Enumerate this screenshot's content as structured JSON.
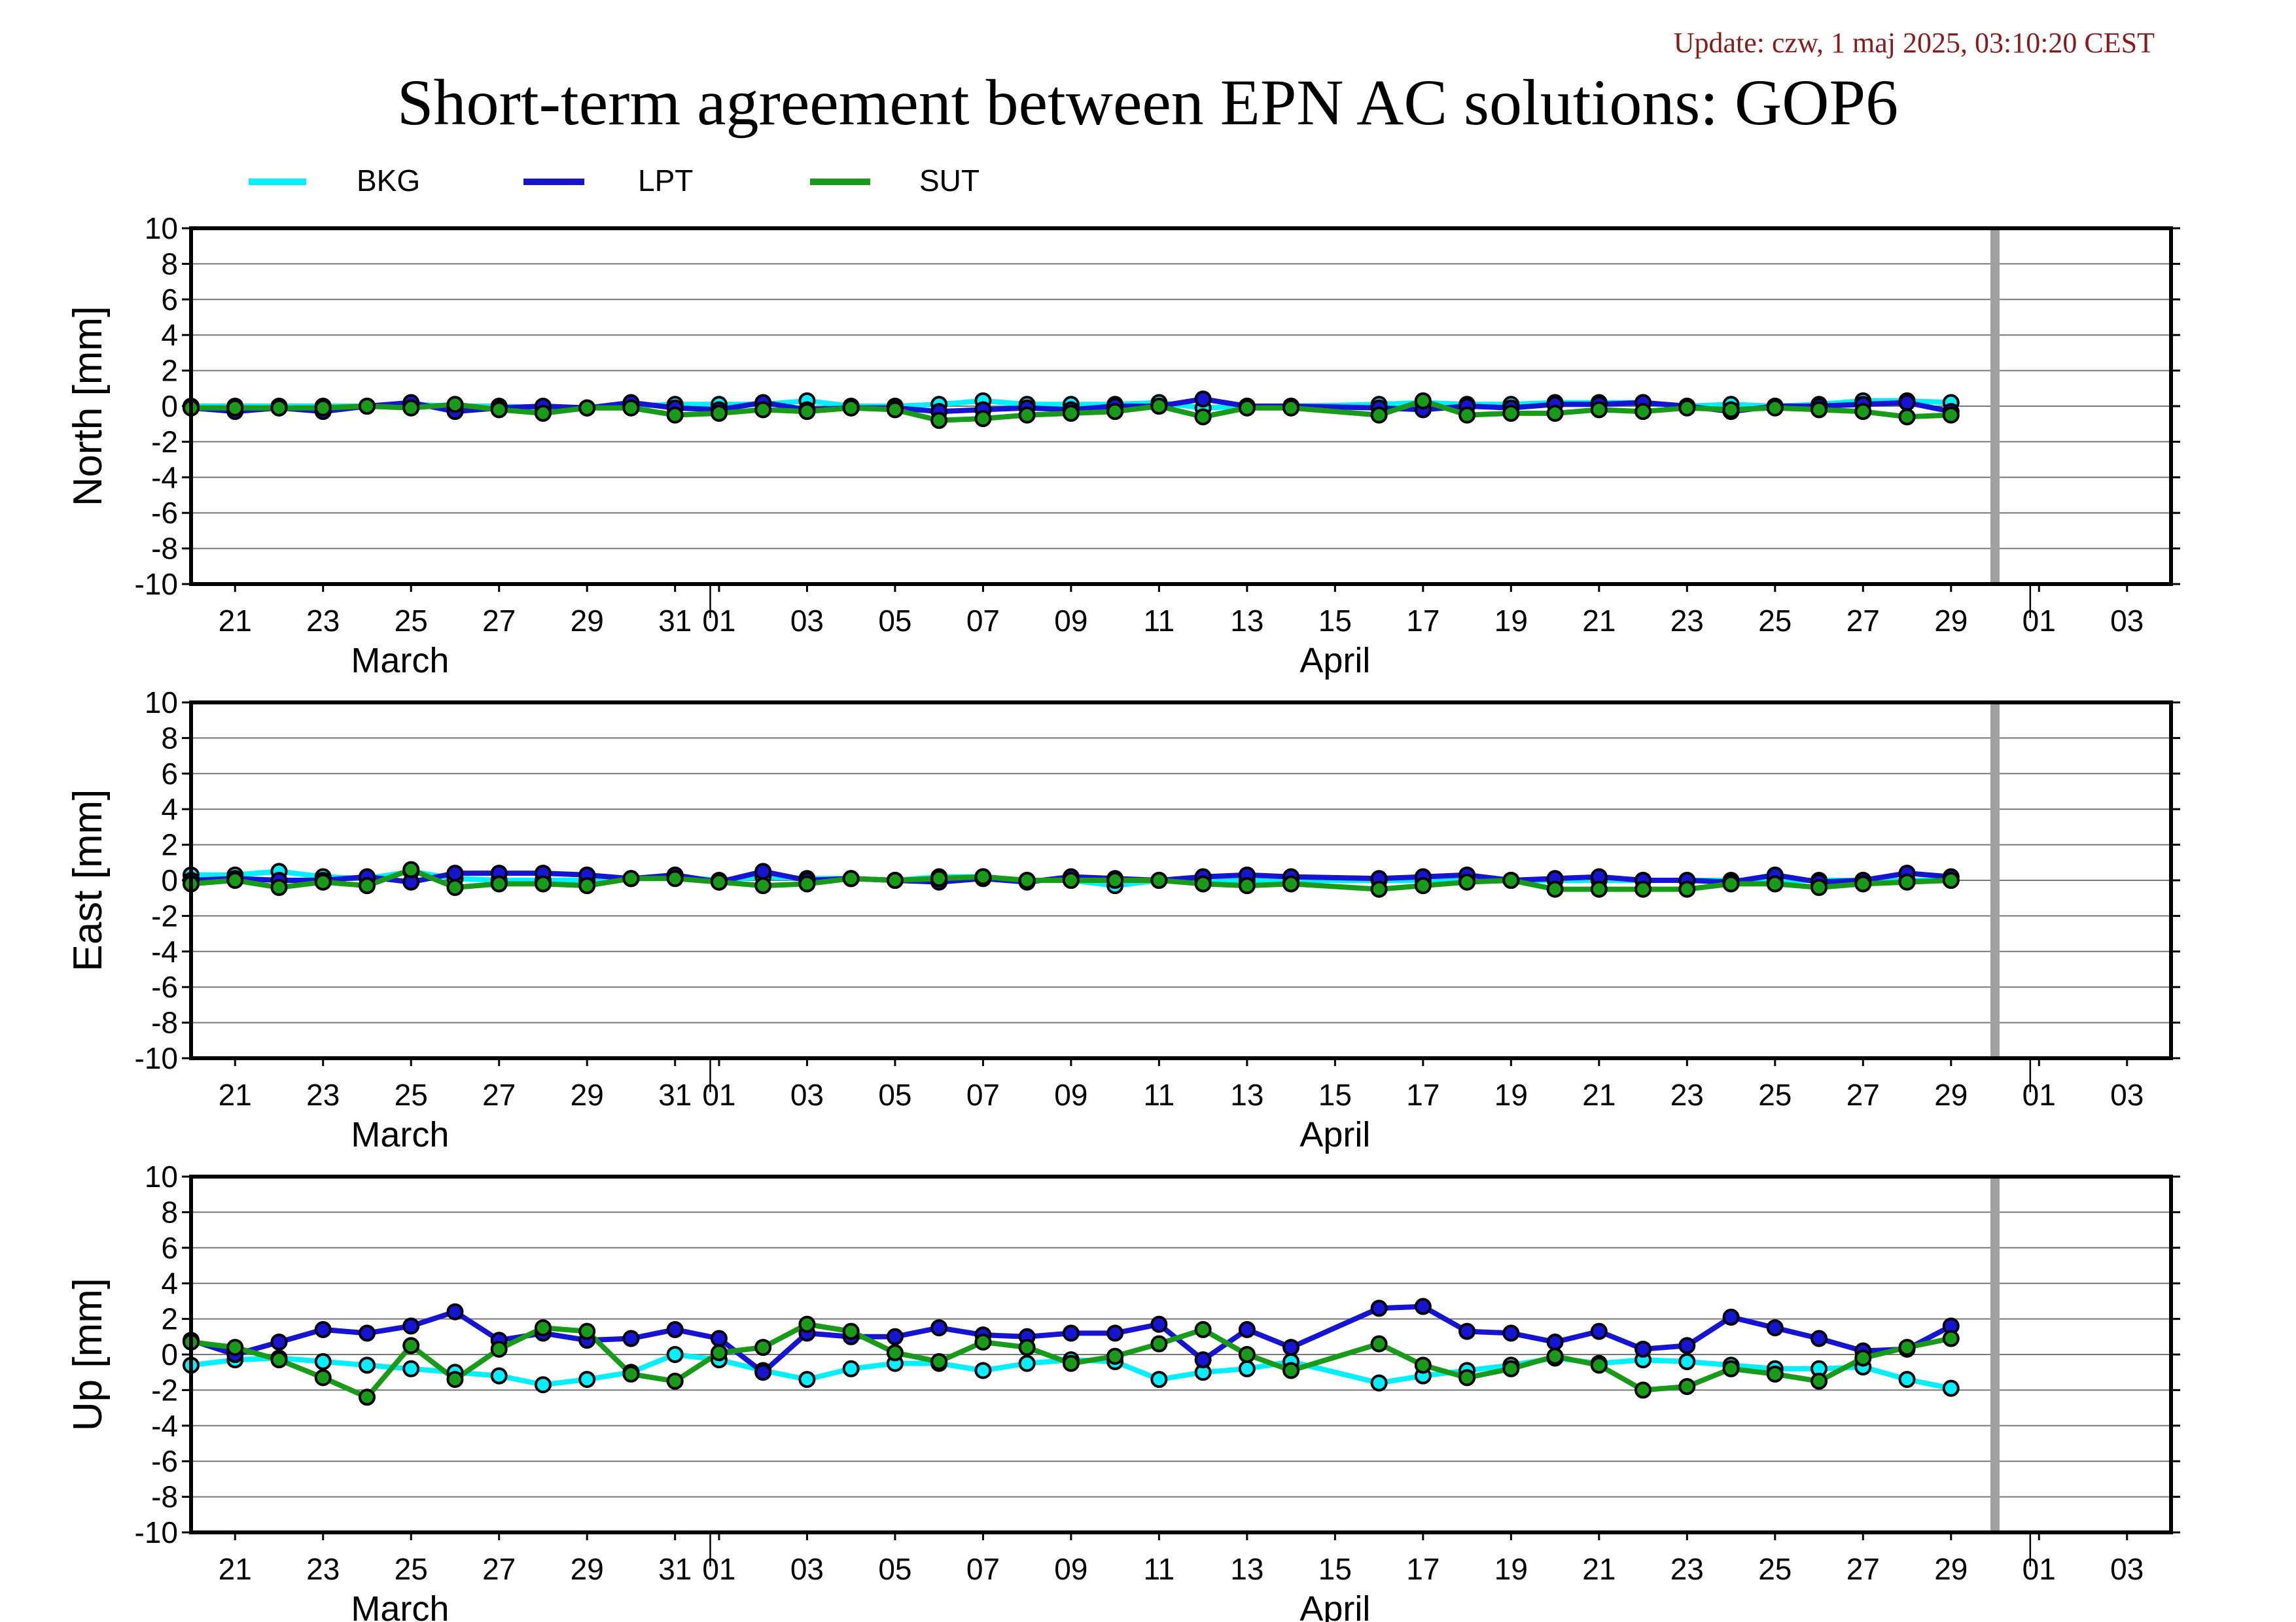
{
  "header": {
    "update": "Update: czw, 1 maj 2025, 03:10:20 CEST",
    "title": "Short-term agreement between EPN AC solutions: GOP6"
  },
  "chart_data": {
    "type": "line",
    "title": "Short-term agreement between EPN AC solutions: GOP6",
    "legend_position": "top-left",
    "grid": "horizontal",
    "x": [
      "03-20",
      "03-21",
      "03-22",
      "03-23",
      "03-24",
      "03-25",
      "03-26",
      "03-27",
      "03-28",
      "03-29",
      "03-30",
      "03-31",
      "04-01",
      "04-02",
      "04-03",
      "04-04",
      "04-05",
      "04-06",
      "04-07",
      "04-08",
      "04-09",
      "04-10",
      "04-11",
      "04-12",
      "04-13",
      "04-14",
      "04-15",
      "04-16",
      "04-17",
      "04-18",
      "04-19",
      "04-20",
      "04-21",
      "04-22",
      "04-23",
      "04-24",
      "04-25",
      "04-26",
      "04-27",
      "04-28",
      "04-29"
    ],
    "xlim": [
      "03-20",
      "05-04"
    ],
    "x_tick_labels": [
      "21",
      "23",
      "25",
      "27",
      "29",
      "31",
      "01",
      "03",
      "05",
      "07",
      "09",
      "11",
      "13",
      "15",
      "17",
      "19",
      "21",
      "23",
      "25",
      "27",
      "29",
      "01",
      "03"
    ],
    "month_labels": [
      "March",
      "April"
    ],
    "current_day_marker": "04-30",
    "colors": {
      "BKG": "#00f0ff",
      "LPT": "#1414d2",
      "SUT": "#189b18"
    },
    "panels": [
      {
        "ylabel": "North [mm]",
        "ylim": [
          -10,
          10
        ],
        "yticks": [
          "10",
          "8",
          "6",
          "4",
          "2",
          "0",
          "-2",
          "-4",
          "-6",
          "-8",
          "-10"
        ],
        "series": [
          {
            "name": "BKG",
            "values": [
              0.0,
              0.0,
              0.0,
              0.0,
              0.0,
              0.1,
              0.0,
              0.0,
              -0.1,
              -0.1,
              0.0,
              0.1,
              0.1,
              0.1,
              0.3,
              0.0,
              0.0,
              0.1,
              0.3,
              0.1,
              0.1,
              0.1,
              0.2,
              -0.1,
              0.0,
              0.0,
              null,
              0.1,
              0.2,
              0.1,
              0.1,
              0.2,
              0.2,
              0.2,
              0.0,
              0.1,
              0.0,
              0.1,
              0.3,
              0.3,
              0.2
            ]
          },
          {
            "name": "LPT",
            "values": [
              -0.1,
              -0.3,
              -0.1,
              -0.3,
              0.0,
              0.2,
              -0.3,
              -0.1,
              0.0,
              -0.1,
              0.2,
              -0.1,
              -0.2,
              0.2,
              -0.2,
              -0.1,
              -0.1,
              -0.3,
              -0.2,
              -0.1,
              -0.2,
              0.0,
              0.0,
              0.4,
              0.0,
              0.0,
              null,
              -0.1,
              -0.2,
              0.0,
              -0.1,
              0.1,
              0.1,
              0.2,
              0.0,
              -0.3,
              0.0,
              0.0,
              0.1,
              0.2,
              -0.3
            ]
          },
          {
            "name": "SUT",
            "values": [
              -0.1,
              -0.1,
              -0.1,
              -0.1,
              0.0,
              -0.1,
              0.1,
              -0.2,
              -0.4,
              -0.1,
              -0.1,
              -0.5,
              -0.4,
              -0.2,
              -0.3,
              -0.1,
              -0.2,
              -0.8,
              -0.7,
              -0.5,
              -0.4,
              -0.3,
              0.0,
              -0.6,
              -0.1,
              -0.1,
              null,
              -0.5,
              0.3,
              -0.5,
              -0.4,
              -0.4,
              -0.2,
              -0.3,
              -0.1,
              -0.2,
              -0.1,
              -0.2,
              -0.3,
              -0.6,
              -0.5
            ]
          }
        ]
      },
      {
        "ylabel": "East [mm]",
        "ylim": [
          -10,
          10
        ],
        "yticks": [
          "10",
          "8",
          "6",
          "4",
          "2",
          "0",
          "-2",
          "-4",
          "-6",
          "-8",
          "-10"
        ],
        "series": [
          {
            "name": "BKG",
            "values": [
              0.3,
              0.3,
              0.5,
              0.2,
              0.1,
              0.5,
              0.1,
              0.0,
              0.0,
              0.0,
              0.1,
              0.2,
              0.0,
              0.2,
              0.1,
              0.1,
              0.0,
              0.2,
              0.2,
              0.0,
              0.0,
              -0.3,
              0.0,
              0.0,
              0.0,
              0.0,
              null,
              0.0,
              0.0,
              0.0,
              0.0,
              0.0,
              0.0,
              0.0,
              0.0,
              0.0,
              0.0,
              0.0,
              0.0,
              0.0,
              0.0
            ]
          },
          {
            "name": "LPT",
            "values": [
              0.0,
              0.1,
              0.0,
              0.0,
              0.2,
              -0.1,
              0.4,
              0.4,
              0.4,
              0.3,
              0.1,
              0.3,
              -0.1,
              0.5,
              0.0,
              0.1,
              0.0,
              -0.1,
              0.1,
              -0.1,
              0.2,
              0.1,
              0.0,
              0.2,
              0.3,
              0.2,
              null,
              0.1,
              0.2,
              0.3,
              0.0,
              0.1,
              0.2,
              0.0,
              0.0,
              -0.1,
              0.3,
              -0.1,
              0.0,
              0.4,
              0.2
            ]
          },
          {
            "name": "SUT",
            "values": [
              -0.2,
              0.0,
              -0.4,
              -0.1,
              -0.3,
              0.6,
              -0.4,
              -0.2,
              -0.2,
              -0.3,
              0.1,
              0.1,
              -0.1,
              -0.3,
              -0.2,
              0.1,
              0.0,
              0.1,
              0.2,
              0.0,
              0.0,
              0.0,
              0.0,
              -0.2,
              -0.3,
              -0.2,
              null,
              -0.5,
              -0.3,
              -0.1,
              0.0,
              -0.5,
              -0.5,
              -0.5,
              -0.5,
              -0.2,
              -0.2,
              -0.4,
              -0.2,
              -0.1,
              0.0
            ]
          }
        ]
      },
      {
        "ylabel": "Up [mm]",
        "ylim": [
          -10,
          10
        ],
        "yticks": [
          "10",
          "8",
          "6",
          "4",
          "2",
          "0",
          "-2",
          "-4",
          "-6",
          "-8",
          "-10"
        ],
        "series": [
          {
            "name": "BKG",
            "values": [
              -0.6,
              -0.3,
              -0.2,
              -0.4,
              -0.6,
              -0.8,
              -1.0,
              -1.2,
              -1.7,
              -1.4,
              -1.0,
              0.0,
              -0.3,
              -0.9,
              -1.4,
              -0.8,
              -0.5,
              -0.5,
              -0.9,
              -0.5,
              -0.3,
              -0.4,
              -1.4,
              -1.0,
              -0.8,
              -0.4,
              null,
              -1.6,
              -1.2,
              -0.9,
              -0.6,
              -0.2,
              -0.5,
              -0.3,
              -0.4,
              -0.6,
              -0.8,
              -0.8,
              -0.7,
              -1.4,
              -1.9
            ]
          },
          {
            "name": "LPT",
            "values": [
              0.8,
              0.0,
              0.7,
              1.4,
              1.2,
              1.6,
              2.4,
              0.8,
              1.2,
              0.8,
              0.9,
              1.4,
              0.9,
              -1.0,
              1.2,
              1.0,
              1.0,
              1.5,
              1.1,
              1.0,
              1.2,
              1.2,
              1.7,
              -0.3,
              1.4,
              0.4,
              null,
              2.6,
              2.7,
              1.3,
              1.2,
              0.7,
              1.3,
              0.3,
              0.5,
              2.1,
              1.5,
              0.9,
              0.2,
              0.3,
              1.6
            ]
          },
          {
            "name": "SUT",
            "values": [
              0.7,
              0.4,
              -0.3,
              -1.3,
              -2.4,
              0.5,
              -1.4,
              0.3,
              1.5,
              1.3,
              -1.1,
              -1.5,
              0.1,
              0.4,
              1.7,
              1.3,
              0.1,
              -0.4,
              0.7,
              0.4,
              -0.5,
              -0.1,
              0.6,
              1.4,
              0.0,
              -0.9,
              null,
              0.6,
              -0.6,
              -1.3,
              -0.8,
              -0.1,
              -0.6,
              -2.0,
              -1.8,
              -0.8,
              -1.1,
              -1.5,
              -0.2,
              0.4,
              0.9
            ]
          }
        ]
      }
    ]
  }
}
